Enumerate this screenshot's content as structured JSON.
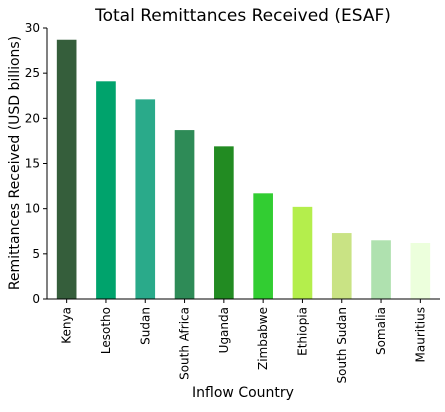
{
  "chart_data": {
    "type": "bar",
    "title": "Total Remittances Received (ESAF)",
    "xlabel": "Inflow Country",
    "ylabel": "Remittances Received (USD billions)",
    "ylim": [
      0,
      30
    ],
    "yticks": [
      0,
      5,
      10,
      15,
      20,
      25,
      30
    ],
    "grid": false,
    "categories": [
      "Kenya",
      "Lesotho",
      "Sudan",
      "South Africa",
      "Uganda",
      "Zimbabwe",
      "Ethiopia",
      "South Sudan",
      "Somalia",
      "Mauritius"
    ],
    "values": [
      28.7,
      24.1,
      22.1,
      18.7,
      16.9,
      11.7,
      10.2,
      7.3,
      6.5,
      6.2
    ],
    "colors": [
      "#355E3B",
      "#00A36C",
      "#2AAA8A",
      "#2E8B57",
      "#228B22",
      "#32CD32",
      "#B4EE4C",
      "#C9E384",
      "#AFE1AF",
      "#ECFFDC"
    ]
  }
}
